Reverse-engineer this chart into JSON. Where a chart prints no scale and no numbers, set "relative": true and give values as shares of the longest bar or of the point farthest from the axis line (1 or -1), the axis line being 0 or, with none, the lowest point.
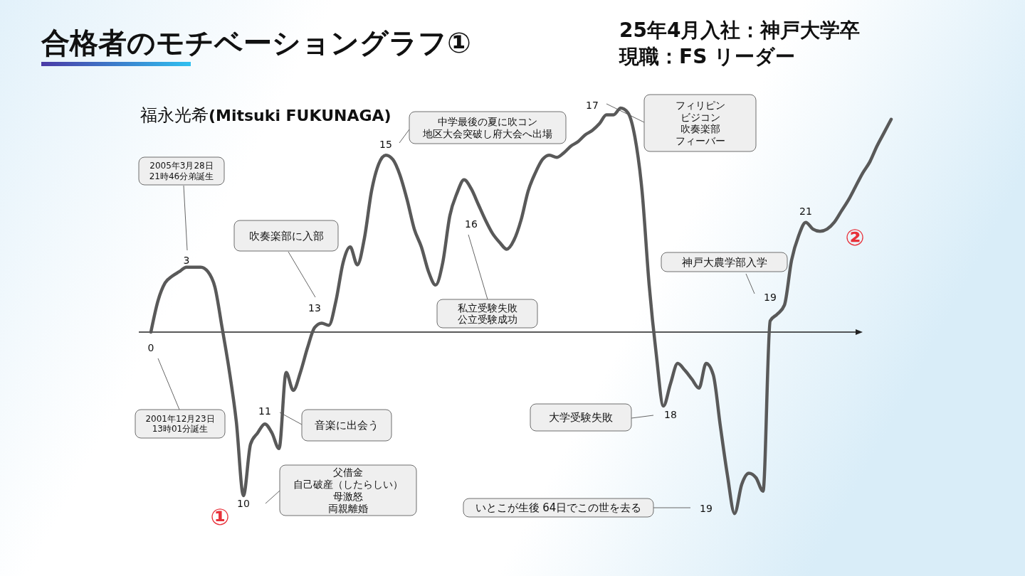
{
  "chart_data": {
    "type": "line",
    "title": "合格者のモチベーショングラフ①",
    "subtitle": "福永光希(Mitsuki FUKUNAGA)",
    "relative": true,
    "color": "#595959",
    "categories": [
      "0",
      null,
      null,
      null,
      null,
      "3",
      null,
      null,
      null,
      null,
      null,
      null,
      null,
      "10",
      null,
      null,
      "11",
      null,
      null,
      null,
      null,
      null,
      null,
      "13",
      null,
      null,
      null,
      null,
      null,
      null,
      null,
      null,
      null,
      "15",
      null,
      null,
      null,
      null,
      null,
      null,
      null,
      null,
      null,
      null,
      null,
      "16",
      null,
      null,
      null,
      null,
      null,
      null,
      null,
      null,
      null,
      null,
      null,
      null,
      null,
      null,
      null,
      null,
      "17",
      null,
      null,
      null,
      null,
      null,
      null,
      null,
      null,
      null,
      null,
      "18",
      null,
      null,
      null,
      null,
      "19",
      null,
      null,
      null,
      null,
      null,
      null,
      null,
      null,
      "19",
      null,
      null,
      null,
      null,
      "21",
      null,
      null,
      null,
      null,
      null,
      null,
      null,
      null,
      null,
      null,
      null,
      null
    ],
    "values": [
      0.0,
      0.14,
      0.22,
      0.25,
      0.27,
      0.29,
      0.29,
      0.29,
      0.27,
      0.2,
      0.02,
      -0.17,
      -0.4,
      -0.73,
      -0.5,
      -0.45,
      -0.41,
      -0.45,
      -0.52,
      -0.18,
      -0.26,
      -0.18,
      -0.07,
      0.02,
      0.04,
      0.03,
      0.14,
      0.31,
      0.38,
      0.3,
      0.42,
      0.63,
      0.75,
      0.79,
      0.77,
      0.7,
      0.59,
      0.46,
      0.38,
      0.27,
      0.21,
      0.31,
      0.52,
      0.62,
      0.68,
      0.64,
      0.57,
      0.5,
      0.44,
      0.4,
      0.37,
      0.41,
      0.5,
      0.63,
      0.71,
      0.77,
      0.79,
      0.78,
      0.8,
      0.83,
      0.85,
      0.88,
      0.9,
      0.93,
      0.97,
      0.97,
      1.0,
      0.98,
      0.87,
      0.63,
      0.21,
      -0.1,
      -0.33,
      -0.23,
      -0.14,
      -0.17,
      -0.21,
      -0.25,
      -0.14,
      -0.19,
      -0.42,
      -0.64,
      -0.81,
      -0.68,
      -0.63,
      -0.65,
      -0.71,
      0.05,
      0.08,
      0.12,
      0.32,
      0.43,
      0.49,
      0.46,
      0.45,
      0.46,
      0.49,
      0.54,
      0.59,
      0.65,
      0.71,
      0.76,
      0.83,
      0.89,
      0.95
    ],
    "annotations": [
      "25年4月入社：神戸大学卒",
      "現職：FS リーダー",
      "2005年3月28日\n21時46分弟誕生",
      "2001年12月23日\n13時01分誕生",
      "吹奏楽部に入部",
      "中学最後の夏に吹コン地区大会突破し府大会へ出場",
      "私立受験失敗公立受験成功",
      "フィリピンビジコン吹奏楽部フィーバー",
      "神戸大農学部入学",
      "大学受験失敗",
      "いとこが生後 64日でこの世を去る",
      "音楽に出会う",
      "父借金自己破産（したらしい）母激怒両親離婚",
      "①",
      "②"
    ]
  }
}
